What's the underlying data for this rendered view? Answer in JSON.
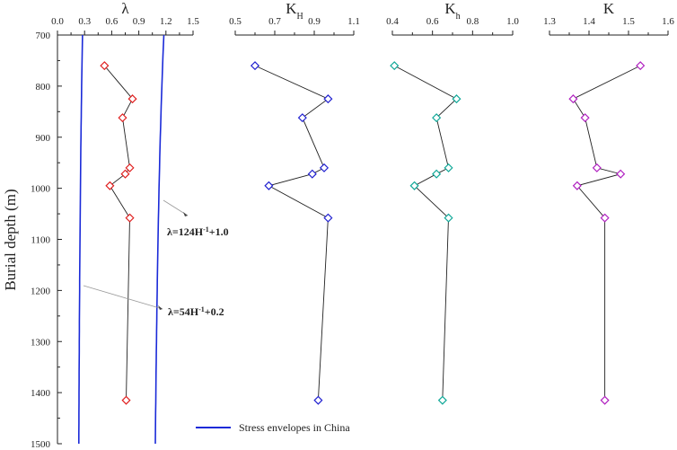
{
  "chart_data": {
    "type": "line",
    "ylabel": "Burial depth (m)",
    "ylim": [
      700,
      1500
    ],
    "yticks": [
      700,
      800,
      900,
      1000,
      1100,
      1200,
      1300,
      1400,
      1500
    ],
    "depths": [
      760,
      825,
      862,
      960,
      972,
      995,
      1058,
      1415
    ],
    "panels": [
      {
        "id": "lambda",
        "title": "λ",
        "xlim": [
          0.0,
          1.5
        ],
        "xticks": [
          "0.0",
          "0.3",
          "0.6",
          "0.9",
          "1.2",
          "1.5"
        ],
        "marker_color": "#e02020",
        "values": [
          0.52,
          0.83,
          0.72,
          0.8,
          0.75,
          0.58,
          0.8,
          0.76
        ]
      },
      {
        "id": "KH",
        "title": "K",
        "title_sub": "H",
        "xlim": [
          0.5,
          1.1
        ],
        "xticks": [
          "0.5",
          "0.7",
          "0.9",
          "1.1"
        ],
        "marker_color": "#2020d0",
        "values": [
          0.6,
          0.97,
          0.84,
          0.95,
          0.89,
          0.67,
          0.97,
          0.92
        ]
      },
      {
        "id": "Kh",
        "title": "K",
        "title_sub": "h",
        "xlim": [
          0.4,
          1.0
        ],
        "xticks": [
          "0.4",
          "0.6",
          "0.8",
          "1.0"
        ],
        "marker_color": "#10a898",
        "values": [
          0.41,
          0.72,
          0.62,
          0.68,
          0.62,
          0.51,
          0.68,
          0.65
        ]
      },
      {
        "id": "K",
        "title": "K",
        "xlim": [
          1.3,
          1.6
        ],
        "xticks": [
          "1.3",
          "1.4",
          "1.5",
          "1.6"
        ],
        "marker_color": "#b020c0",
        "values": [
          1.53,
          1.36,
          1.39,
          1.42,
          1.48,
          1.37,
          1.44,
          1.44
        ]
      }
    ],
    "envelopes": {
      "name": "Stress envelopes in China",
      "color": "#1a2ad8",
      "upper": {
        "label_main": "λ=124H",
        "label_exp": "-1",
        "label_tail": "+1.0",
        "a": 124,
        "b": 1.0
      },
      "lower": {
        "label_main": "λ=54H",
        "label_exp": "-1",
        "label_tail": "+0.2",
        "a": 54,
        "b": 0.2
      }
    }
  }
}
